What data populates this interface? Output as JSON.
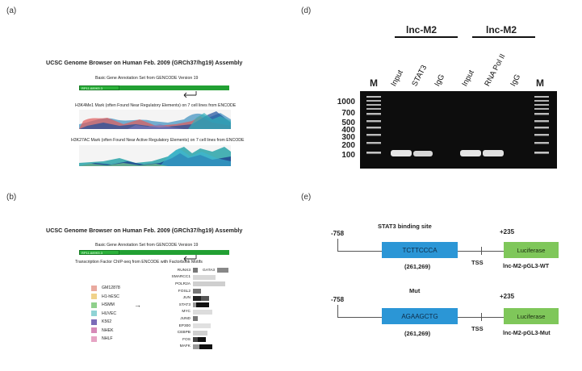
{
  "panels": {
    "a": {
      "label": "(a)",
      "title": "UCSC Genome Browser on Human Feb. 2009 (GRCh37/hg19) Assembly",
      "gene_track_label": "Basic Gene Annotation Set from GENCODE Version 19",
      "gene_box_text": "RP11-689K5.3",
      "h3k4_label": "H3K4Me1 Mark (often Found Near Regulatory Elements) on 7  cell lines from ENCODE",
      "h3k27_label": "H3K27AC Mark (often Found Near Active Regulatory Elements) on 7  cell lines from ENCODE"
    },
    "b": {
      "label": "(b)",
      "title": "UCSC Genome Browser on Human Feb. 2009 (GRCh37/hg19) Assembly",
      "gene_track_label": "Basic Gene Annotation Set from GENCODE Version 19",
      "gene_box_text": "RP11-689K5.3",
      "tf_track_label": "Transcription Factor ChIP-seq from ENCODE with Factorbook Motifs",
      "cell_lines": [
        {
          "name": "GM12878",
          "color": "#e9a99f"
        },
        {
          "name": "H1-hESC",
          "color": "#f0d28a"
        },
        {
          "name": "HSMM",
          "color": "#8fd08c"
        },
        {
          "name": "HUVEC",
          "color": "#8fd3d5"
        },
        {
          "name": "K562",
          "color": "#7b6bb8"
        },
        {
          "name": "NHEK",
          "color": "#d68ab8"
        },
        {
          "name": "NHLF",
          "color": "#e6a4c4"
        }
      ],
      "arrow_glyph": "→",
      "tfs": [
        "RUNX3",
        "GATA3",
        "SMARCC1",
        "POLR2A",
        "FOSL2",
        "JUN",
        "STAT3",
        "MYC",
        "JUND",
        "EP300",
        "CEBPB",
        "FOS",
        "MAFK"
      ]
    },
    "d": {
      "label": "(d)",
      "group1": "lnc-M2",
      "group2": "lnc-M2",
      "marker_label": "M",
      "lanes": [
        "Input",
        "STAT3",
        "IgG",
        "Input",
        "RNA Pol II",
        "IgG"
      ],
      "bp_ladder": [
        "1000",
        "700",
        "500",
        "400",
        "300",
        "200",
        "100"
      ]
    },
    "e": {
      "label": "(e)",
      "wt": {
        "site_label": "STAT3 binding site",
        "left_coord": "-758",
        "right_coord": "+235",
        "site_seq": "TCTTCCCA",
        "site_pos": "(261,269)",
        "tss": "TSS",
        "reporter": "Luciferase",
        "construct": "lnc-M2-pGL3-WT"
      },
      "mut": {
        "site_label": "Mut",
        "left_coord": "-758",
        "right_coord": "+235",
        "site_seq": "AGAAGCTG",
        "site_pos": "(261,269)",
        "tss": "TSS",
        "reporter": "Luciferase",
        "construct": "lnc-M2-pGL3-Mut"
      }
    }
  }
}
